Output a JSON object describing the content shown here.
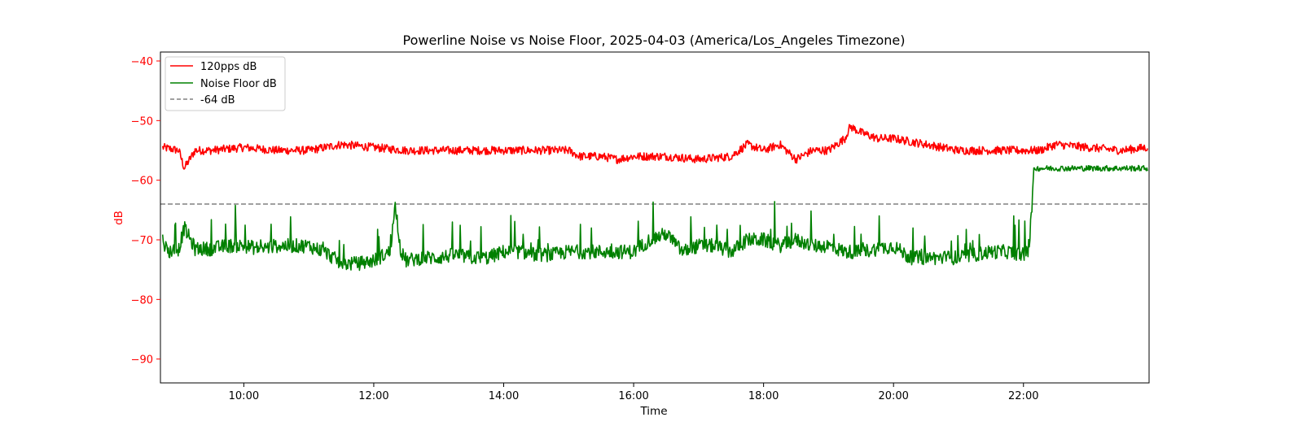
{
  "chart_data": {
    "type": "line",
    "title": "Powerline Noise vs Noise Floor, 2025-04-03 (America/Los_Angeles Timezone)",
    "xlabel": "Time",
    "ylabel": "dB",
    "xlim": [
      "08:43",
      "23:56"
    ],
    "ylim": [
      -94,
      -38.5
    ],
    "x_ticks": [
      "10:00",
      "12:00",
      "14:00",
      "16:00",
      "18:00",
      "20:00",
      "22:00"
    ],
    "y_ticks": [
      "−40",
      "−50",
      "−60",
      "−70",
      "−80",
      "−90"
    ],
    "y_tick_values": [
      -40,
      -50,
      -60,
      -70,
      -80,
      -90
    ],
    "grid": false,
    "legend_position": "top-left",
    "colors": {
      "series_120pps": "#ff0000",
      "series_floor": "#008000",
      "threshold": "#808080",
      "ylabel_color": "#ff0000"
    },
    "series": [
      {
        "name": "120pps dB",
        "color": "#ff0000",
        "x": [
          "08:45",
          "09:00",
          "09:05",
          "09:15",
          "09:30",
          "10:00",
          "10:30",
          "11:00",
          "11:30",
          "12:00",
          "12:30",
          "13:00",
          "13:30",
          "14:00",
          "14:30",
          "15:00",
          "15:10",
          "15:30",
          "15:45",
          "16:00",
          "16:30",
          "17:00",
          "17:30",
          "17:45",
          "18:00",
          "18:15",
          "18:30",
          "18:45",
          "19:00",
          "19:15",
          "19:20",
          "19:30",
          "19:45",
          "20:00",
          "20:30",
          "21:00",
          "21:30",
          "22:00",
          "22:15",
          "22:30",
          "23:00",
          "23:30",
          "23:55"
        ],
        "values": [
          -54.5,
          -55,
          -58,
          -55,
          -55,
          -54.5,
          -55,
          -55,
          -54,
          -54.5,
          -55,
          -55,
          -55,
          -55,
          -55,
          -55,
          -56,
          -56,
          -56.5,
          -56,
          -56,
          -56.5,
          -56,
          -54,
          -55,
          -54,
          -56.5,
          -55,
          -55,
          -53,
          -51,
          -52,
          -53,
          -53,
          -54,
          -55,
          -55,
          -55,
          -55,
          -54,
          -54.5,
          -55,
          -54.5
        ]
      },
      {
        "name": "Noise Floor dB",
        "color": "#008000",
        "x": [
          "08:45",
          "08:50",
          "09:00",
          "09:05",
          "09:15",
          "09:30",
          "09:45",
          "10:00",
          "10:15",
          "10:30",
          "10:45",
          "11:00",
          "11:15",
          "11:30",
          "11:45",
          "12:00",
          "12:15",
          "12:20",
          "12:25",
          "12:30",
          "12:45",
          "13:00",
          "13:15",
          "13:30",
          "13:45",
          "14:00",
          "14:15",
          "14:30",
          "14:45",
          "15:00",
          "15:15",
          "15:30",
          "15:45",
          "16:00",
          "16:15",
          "16:30",
          "16:45",
          "17:00",
          "17:15",
          "17:30",
          "17:45",
          "18:00",
          "18:15",
          "18:30",
          "18:45",
          "19:00",
          "19:15",
          "19:30",
          "19:45",
          "20:00",
          "20:15",
          "20:30",
          "20:45",
          "21:00",
          "21:15",
          "21:30",
          "21:45",
          "22:00",
          "22:05",
          "22:10",
          "22:30",
          "23:00",
          "23:30",
          "23:55"
        ],
        "values": [
          -70,
          -72,
          -71.5,
          -68,
          -71.5,
          -71.5,
          -71,
          -71,
          -71.5,
          -71,
          -71,
          -71,
          -72,
          -74,
          -74,
          -73.5,
          -72,
          -64,
          -72,
          -73.5,
          -73,
          -73,
          -72.5,
          -73,
          -73,
          -72,
          -72,
          -72.5,
          -72.5,
          -72,
          -72,
          -72,
          -72,
          -72,
          -70,
          -69,
          -72,
          -71,
          -71,
          -72,
          -70,
          -70,
          -71,
          -70,
          -71,
          -71,
          -72,
          -72,
          -71.5,
          -71,
          -73,
          -73,
          -73,
          -73,
          -72.5,
          -72,
          -72,
          -72.5,
          -72,
          -58,
          -58,
          -58,
          -58,
          -58
        ]
      },
      {
        "name": "-64 dB",
        "color": "#808080",
        "style": "dashed",
        "values": [
          -64
        ]
      }
    ]
  }
}
